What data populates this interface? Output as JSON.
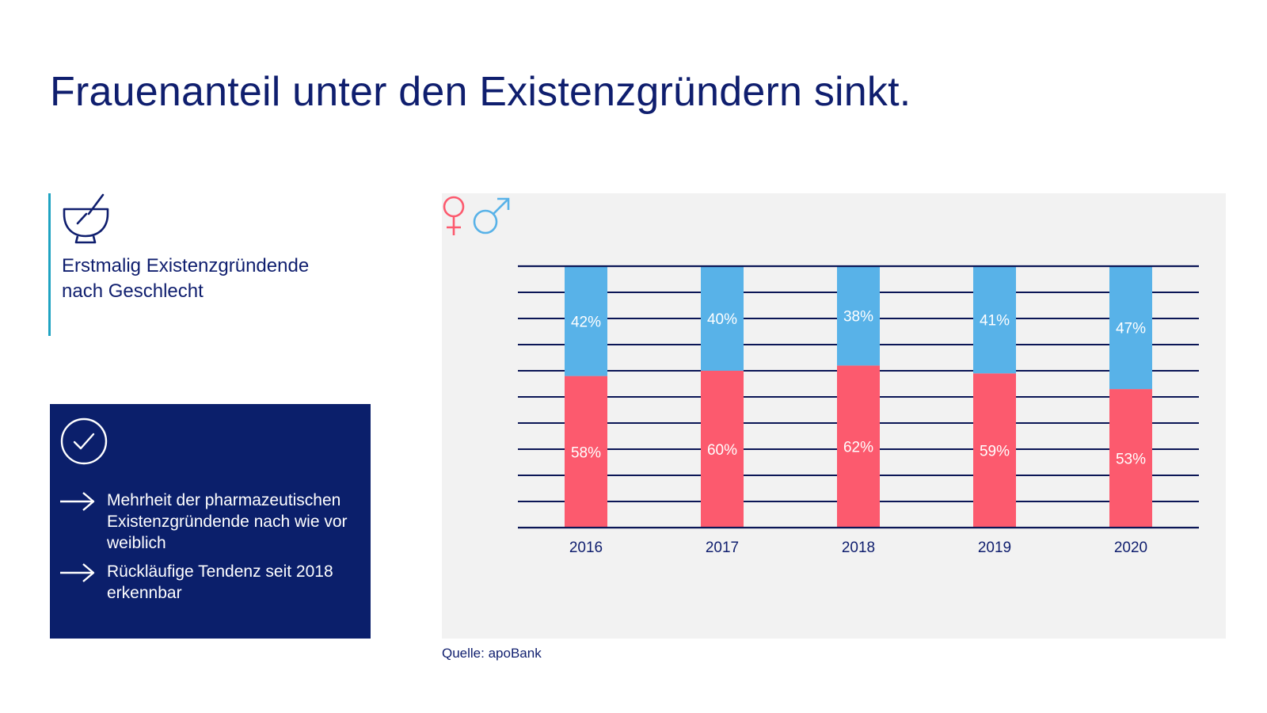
{
  "header": {
    "title": "Frauenanteil unter den Existenzgründern sinkt."
  },
  "info": {
    "icon": "mortar-pestle-icon",
    "lines": [
      "Erstmalig Existenzgründende",
      "nach Geschlecht"
    ]
  },
  "summary": {
    "icon": "check-circle-icon",
    "bullets": [
      "Mehrheit der pharmazeutischen Existenzgründende nach wie vor weiblich",
      "Rückläufige Tendenz seit 2018 erkennbar"
    ]
  },
  "colors": {
    "female": "#fc5a6e",
    "male": "#58b2e8",
    "grid": "#0b1656",
    "panel": "#f2f2f2",
    "navy": "#0b1f6b"
  },
  "chart_data": {
    "type": "bar",
    "stacked": true,
    "categories": [
      "2016",
      "2017",
      "2018",
      "2019",
      "2020"
    ],
    "series": [
      {
        "name": "female",
        "values": [
          58,
          60,
          62,
          59,
          53
        ],
        "labels": [
          "58%",
          "60%",
          "62%",
          "59%",
          "53%"
        ]
      },
      {
        "name": "male",
        "values": [
          42,
          40,
          38,
          41,
          47
        ],
        "labels": [
          "42%",
          "40%",
          "38%",
          "41%",
          "47%"
        ]
      }
    ],
    "ylim": [
      0,
      100
    ],
    "grid": true,
    "legend": [
      "female-symbol",
      "male-symbol"
    ],
    "legend_position": "bottom-center"
  },
  "footer": {
    "source": "Quelle: apoBank"
  }
}
